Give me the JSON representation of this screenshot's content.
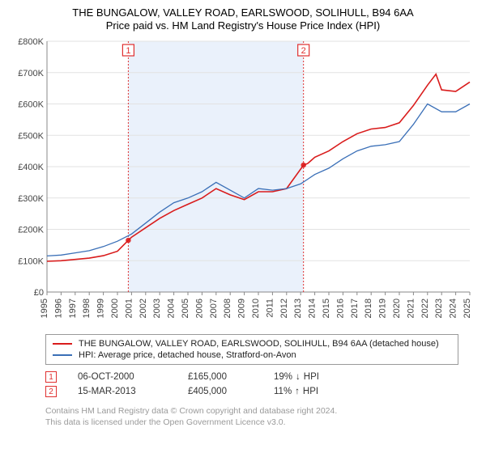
{
  "title": "THE BUNGALOW, VALLEY ROAD, EARLSWOOD, SOLIHULL, B94 6AA",
  "subtitle": "Price paid vs. HM Land Registry's House Price Index (HPI)",
  "chart": {
    "type": "line",
    "background_color": "#ffffff",
    "grid_color": "#e2e2e2",
    "shade_color": "#eaf1fb",
    "marker_color": "#e03030",
    "x": {
      "min": 1995,
      "max": 2025,
      "ticks": [
        1995,
        1996,
        1997,
        1998,
        1999,
        2000,
        2001,
        2002,
        2003,
        2004,
        2005,
        2006,
        2007,
        2008,
        2009,
        2010,
        2011,
        2012,
        2013,
        2014,
        2015,
        2016,
        2017,
        2018,
        2019,
        2020,
        2021,
        2022,
        2023,
        2024,
        2025
      ],
      "label_fontsize": 10
    },
    "y": {
      "min": 0,
      "max": 800000,
      "ticks": [
        0,
        100000,
        200000,
        300000,
        400000,
        500000,
        600000,
        700000,
        800000
      ],
      "tick_labels": [
        "£0",
        "£100K",
        "£200K",
        "£300K",
        "£400K",
        "£500K",
        "£600K",
        "£700K",
        "£800K"
      ],
      "label_fontsize": 11
    },
    "shade_range": [
      2000.77,
      2013.2
    ],
    "series": [
      {
        "name": "property",
        "color": "#d91c1c",
        "width": 1.6,
        "label": "THE BUNGALOW, VALLEY ROAD, EARLSWOOD, SOLIHULL, B94 6AA (detached house)",
        "points": [
          [
            1995,
            98000
          ],
          [
            1996,
            100000
          ],
          [
            1997,
            104000
          ],
          [
            1998,
            108000
          ],
          [
            1999,
            116000
          ],
          [
            2000,
            130000
          ],
          [
            2000.77,
            165000
          ],
          [
            2001,
            175000
          ],
          [
            2002,
            205000
          ],
          [
            2003,
            235000
          ],
          [
            2004,
            260000
          ],
          [
            2005,
            280000
          ],
          [
            2006,
            300000
          ],
          [
            2007,
            330000
          ],
          [
            2008,
            310000
          ],
          [
            2009,
            295000
          ],
          [
            2010,
            320000
          ],
          [
            2011,
            320000
          ],
          [
            2012,
            330000
          ],
          [
            2013.2,
            405000
          ],
          [
            2013.5,
            410000
          ],
          [
            2014,
            430000
          ],
          [
            2015,
            450000
          ],
          [
            2016,
            480000
          ],
          [
            2017,
            505000
          ],
          [
            2018,
            520000
          ],
          [
            2019,
            525000
          ],
          [
            2020,
            540000
          ],
          [
            2021,
            595000
          ],
          [
            2022,
            660000
          ],
          [
            2022.6,
            695000
          ],
          [
            2023,
            645000
          ],
          [
            2024,
            640000
          ],
          [
            2025,
            670000
          ]
        ]
      },
      {
        "name": "hpi",
        "color": "#3a6fb7",
        "width": 1.3,
        "label": "HPI: Average price, detached house, Stratford-on-Avon",
        "points": [
          [
            1995,
            115000
          ],
          [
            1996,
            118000
          ],
          [
            1997,
            125000
          ],
          [
            1998,
            132000
          ],
          [
            1999,
            145000
          ],
          [
            2000,
            162000
          ],
          [
            2001,
            185000
          ],
          [
            2002,
            220000
          ],
          [
            2003,
            255000
          ],
          [
            2004,
            285000
          ],
          [
            2005,
            300000
          ],
          [
            2006,
            320000
          ],
          [
            2007,
            350000
          ],
          [
            2008,
            325000
          ],
          [
            2009,
            300000
          ],
          [
            2010,
            330000
          ],
          [
            2011,
            325000
          ],
          [
            2012,
            330000
          ],
          [
            2013,
            345000
          ],
          [
            2014,
            375000
          ],
          [
            2015,
            395000
          ],
          [
            2016,
            425000
          ],
          [
            2017,
            450000
          ],
          [
            2018,
            465000
          ],
          [
            2019,
            470000
          ],
          [
            2020,
            480000
          ],
          [
            2021,
            535000
          ],
          [
            2022,
            600000
          ],
          [
            2023,
            575000
          ],
          [
            2024,
            575000
          ],
          [
            2025,
            600000
          ]
        ]
      }
    ],
    "sales_markers": [
      {
        "n": "1",
        "x": 2000.77,
        "y": 165000
      },
      {
        "n": "2",
        "x": 2013.2,
        "y": 405000
      }
    ]
  },
  "legend": {
    "items": [
      {
        "key": "property",
        "color": "#d91c1c"
      },
      {
        "key": "hpi",
        "color": "#3a6fb7"
      }
    ]
  },
  "sales": [
    {
      "n": "1",
      "date": "06-OCT-2000",
      "price": "£165,000",
      "delta_pct": "19%",
      "delta_dir": "down",
      "delta_label": "HPI"
    },
    {
      "n": "2",
      "date": "15-MAR-2013",
      "price": "£405,000",
      "delta_pct": "11%",
      "delta_dir": "up",
      "delta_label": "HPI"
    }
  ],
  "footer": {
    "line1": "Contains HM Land Registry data © Crown copyright and database right 2024.",
    "line2": "This data is licensed under the Open Government Licence v3.0."
  }
}
